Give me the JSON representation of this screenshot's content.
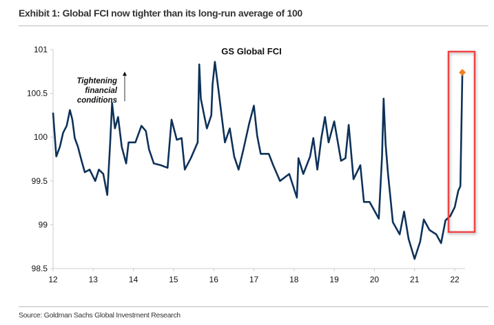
{
  "title": "Exhibit 1: Global FCI now tighter than its long-run average of 100",
  "source": "Source: Goldman Sachs Global Investment Research",
  "chart_data": {
    "type": "line",
    "title": "GS Global FCI",
    "xlabel": "",
    "ylabel": "",
    "xlim": [
      12,
      22.3
    ],
    "ylim": [
      98.5,
      101
    ],
    "x_ticks": [
      "12",
      "13",
      "14",
      "15",
      "16",
      "17",
      "18",
      "19",
      "20",
      "21",
      "22"
    ],
    "y_ticks": [
      "98.5",
      "99",
      "99.5",
      "100",
      "100.5",
      "101"
    ],
    "grid": false,
    "annotation": "Tightening financial conditions",
    "annotation_arrow": "up",
    "line_color": "#0d3159",
    "highlight_marker_color": "#f08020",
    "highlight_box_color": "#ef4444",
    "x": [
      12.0,
      12.08,
      12.17,
      12.25,
      12.34,
      12.42,
      12.48,
      12.54,
      12.62,
      12.71,
      12.79,
      12.91,
      13.05,
      13.14,
      13.25,
      13.35,
      13.42,
      13.47,
      13.54,
      13.62,
      13.71,
      13.82,
      13.88,
      14.05,
      14.2,
      14.31,
      14.39,
      14.51,
      14.68,
      14.85,
      14.95,
      15.08,
      15.2,
      15.28,
      15.43,
      15.6,
      15.64,
      15.68,
      15.77,
      15.83,
      15.94,
      15.97,
      16.03,
      16.11,
      16.2,
      16.28,
      16.4,
      16.51,
      16.62,
      16.74,
      16.88,
      17.0,
      17.08,
      17.17,
      17.37,
      17.48,
      17.65,
      17.88,
      18.07,
      18.11,
      18.23,
      18.4,
      18.48,
      18.58,
      18.68,
      18.77,
      18.86,
      19.0,
      19.17,
      19.28,
      19.36,
      19.48,
      19.65,
      19.74,
      19.88,
      20.11,
      20.19,
      20.23,
      20.28,
      20.34,
      20.46,
      20.63,
      20.74,
      20.85,
      21.0,
      21.14,
      21.23,
      21.37,
      21.54,
      21.66,
      21.77,
      21.89,
      22.0,
      22.09,
      22.14,
      22.19
    ],
    "values": [
      100.28,
      99.78,
      99.89,
      100.05,
      100.13,
      100.31,
      100.2,
      99.99,
      99.89,
      99.73,
      99.6,
      99.63,
      99.5,
      99.63,
      99.58,
      99.34,
      99.92,
      100.39,
      100.1,
      100.23,
      99.89,
      99.7,
      99.94,
      99.94,
      100.13,
      100.07,
      99.86,
      99.7,
      99.68,
      99.65,
      100.2,
      99.97,
      99.99,
      99.63,
      99.76,
      99.94,
      100.83,
      100.44,
      100.23,
      100.1,
      100.25,
      100.6,
      100.86,
      100.57,
      100.23,
      99.94,
      100.1,
      99.78,
      99.63,
      99.86,
      100.15,
      100.36,
      100.02,
      99.81,
      99.81,
      99.68,
      99.5,
      99.58,
      99.31,
      99.76,
      99.58,
      99.78,
      99.99,
      99.63,
      99.99,
      100.23,
      99.94,
      100.18,
      99.73,
      99.76,
      100.14,
      99.52,
      99.68,
      99.26,
      99.26,
      99.07,
      99.78,
      100.44,
      99.92,
      99.58,
      99.03,
      98.89,
      99.15,
      98.84,
      98.61,
      98.81,
      99.06,
      98.94,
      98.89,
      98.79,
      99.05,
      99.1,
      99.2,
      99.39,
      99.44,
      100.74
    ]
  }
}
